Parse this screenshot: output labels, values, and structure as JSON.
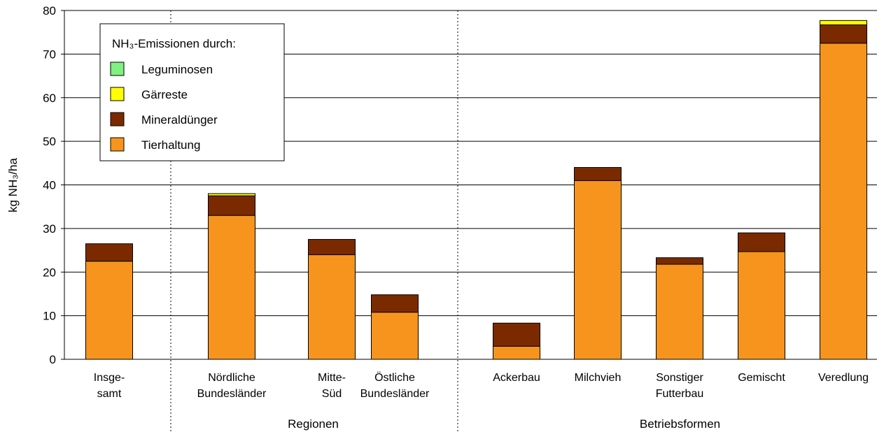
{
  "chart_data": {
    "type": "bar",
    "stacked": true,
    "ylabel": "kg NH₃/ha",
    "ylim": [
      0,
      80
    ],
    "yticks": [
      0,
      10,
      20,
      30,
      40,
      50,
      60,
      70,
      80
    ],
    "grid": true,
    "legend": {
      "title": "NH₃-Emissionen durch:",
      "placement": "top-left"
    },
    "categories": [
      [
        "Insge-",
        "samt"
      ],
      [
        "Nördliche",
        "Bundesländer"
      ],
      [
        "Mitte-",
        "Süd"
      ],
      [
        "Östliche",
        "Bundesländer"
      ],
      [
        "Ackerbau"
      ],
      [
        "Milchvieh"
      ],
      [
        "Sonstiger",
        "Futterbau"
      ],
      [
        "Gemischt"
      ],
      [
        "Veredlung"
      ]
    ],
    "groups": [
      {
        "label": "Regionen",
        "categories": [
          1,
          2,
          3
        ]
      },
      {
        "label": "Betriebsformen",
        "categories": [
          4,
          5,
          6,
          7,
          8
        ]
      }
    ],
    "series": [
      {
        "name": "Tierhaltung",
        "color": "#f7941d",
        "values": [
          22.5,
          33.0,
          24.0,
          10.8,
          3.0,
          41.0,
          21.8,
          24.7,
          72.5
        ]
      },
      {
        "name": "Mineraldünger",
        "color": "#7b2a00",
        "values": [
          4.0,
          4.5,
          3.5,
          4.0,
          5.3,
          3.0,
          1.5,
          4.3,
          4.2
        ]
      },
      {
        "name": "Gärreste",
        "color": "#ffff00",
        "values": [
          0.0,
          0.5,
          0.0,
          0.0,
          0.0,
          0.0,
          0.0,
          0.0,
          1.0
        ]
      },
      {
        "name": "Leguminosen",
        "color": "#80f080",
        "values": [
          0.0,
          0.0,
          0.0,
          0.0,
          0.0,
          0.0,
          0.0,
          0.0,
          0.0
        ]
      }
    ],
    "legend_order": [
      "Leguminosen",
      "Gärreste",
      "Mineraldünger",
      "Tierhaltung"
    ]
  }
}
